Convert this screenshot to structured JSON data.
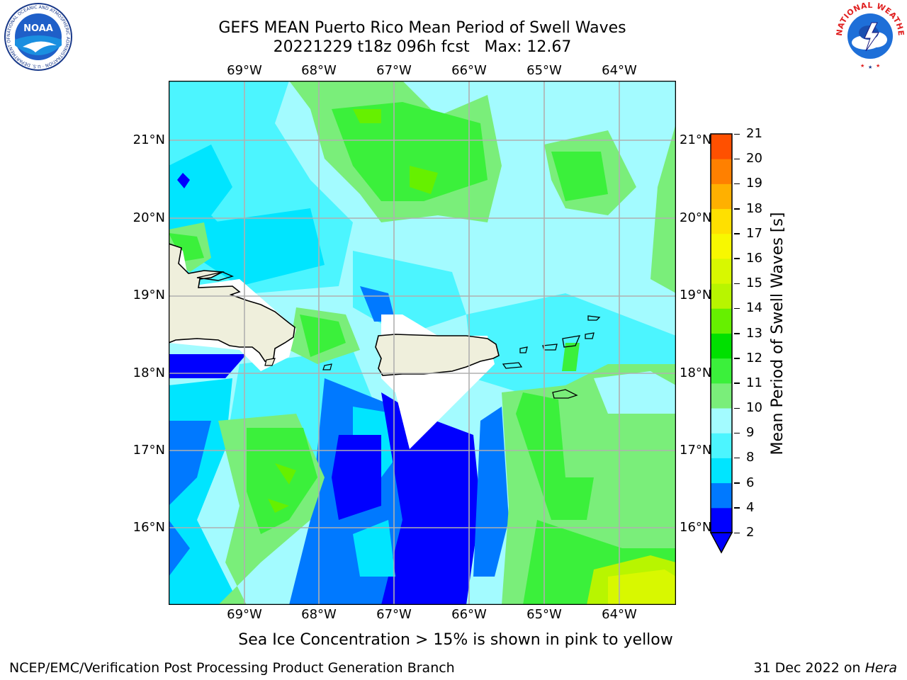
{
  "header": {
    "title_line1": "GEFS MEAN Puerto Rico Mean Period of Swell Waves",
    "title_line2": "20221229 t18z 096h fcst   Max: 12.67"
  },
  "logos": {
    "left_text": "NOAA",
    "left_ring_text": "NATIONAL OCEANIC AND ATMOSPHERIC ADMINISTRATION · U.S. DEPARTMENT OF COMMERCE",
    "right_ring_text": "NATIONAL WEATHER SERVICE"
  },
  "map": {
    "lon_labels": [
      "69°W",
      "68°W",
      "67°W",
      "66°W",
      "65°W",
      "64°W"
    ],
    "lat_labels": [
      "21°N",
      "20°N",
      "19°N",
      "18°N",
      "17°N",
      "16°N"
    ],
    "grid": true,
    "field_max": 12.67
  },
  "colorbar": {
    "label": "Mean Period of Swell Waves [s]",
    "ticks": [
      "2",
      "4",
      "6",
      "8",
      "9",
      "10",
      "11",
      "12",
      "13",
      "14",
      "15",
      "16",
      "17",
      "18",
      "19",
      "20",
      "21"
    ],
    "colors": [
      "#0000ff",
      "#0079ff",
      "#00e5ff",
      "#4cf5ff",
      "#a3fbff",
      "#7aee7a",
      "#3bf03b",
      "#00e000",
      "#66f000",
      "#b8f500",
      "#d8f800",
      "#f8f800",
      "#ffe000",
      "#ffb000",
      "#ff8000",
      "#ff5000",
      "#ff2000"
    ]
  },
  "caption": "Sea Ice Concentration > 15% is shown in pink to yellow",
  "footer": {
    "left": "NCEP/EMC/Verification Post Processing Product Generation Branch",
    "right_date": "31 Dec 2022 on ",
    "right_host": "Hera"
  }
}
